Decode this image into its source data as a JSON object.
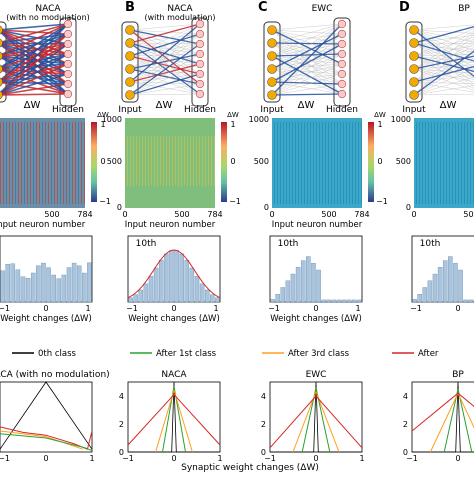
{
  "panels": [
    {
      "letter": "",
      "title": "NACA",
      "subtitle": "(with no modulation)",
      "hidden": "Hidden",
      "input": "",
      "dw": "ΔW"
    },
    {
      "letter": "B",
      "title": "NACA",
      "subtitle": "(with modulation)",
      "hidden": "Hidden",
      "input": "Input",
      "dw": "ΔW"
    },
    {
      "letter": "C",
      "title": "EWC",
      "subtitle": "",
      "hidden": "Hidden",
      "input": "Input",
      "dw": "ΔW"
    },
    {
      "letter": "D",
      "title": "BP",
      "subtitle": "",
      "hidden": "",
      "input": "Input",
      "dw": "ΔW"
    }
  ],
  "heatmaps": {
    "xlabel": "Input neuron number",
    "yticks": [
      "1000",
      "500",
      "0"
    ],
    "xticks": [
      "0",
      "500",
      "784"
    ],
    "cbar_ticks": [
      "1",
      "0",
      "−1"
    ],
    "cbar_label": "ΔW"
  },
  "histograms": {
    "tag": "10th",
    "xlabel": "Weight changes (ΔW)",
    "xticks": [
      "−1",
      "0",
      "1"
    ]
  },
  "legend": {
    "items": [
      {
        "label": "0th class",
        "color": "#000000"
      },
      {
        "label": "After 1st class",
        "color": "#2ca02c"
      },
      {
        "label": "After 3rd class",
        "color": "#ff9e1b"
      },
      {
        "label": "After",
        "color": "#d62728"
      }
    ]
  },
  "bottom": {
    "titles": [
      "ACA (with no modulation)",
      "NACA",
      "EWC",
      "BP"
    ],
    "xlabel": "Synaptic weight changes (ΔW)",
    "yticks": [
      "4",
      "2",
      "0"
    ],
    "xticks": [
      "−1",
      "0",
      "1"
    ]
  },
  "colors": {
    "red": "#c0262d",
    "blue": "#1f4e9c",
    "neuron_in": "#f2a900",
    "neuron_hidden": "#f7c9c9",
    "hist_bar": "#a9c4dd"
  },
  "chart_data": [
    {
      "type": "line",
      "title": "NACA",
      "xlabel": "Synaptic weight changes (ΔW)",
      "xlim": [
        -1,
        1
      ],
      "ylim": [
        0,
        5
      ],
      "series": [
        {
          "name": "0th class",
          "x": [
            -1,
            -0.05,
            0,
            0.05,
            1
          ],
          "y": [
            0,
            0,
            5,
            0,
            0
          ]
        },
        {
          "name": "After 1st class",
          "x": [
            -0.25,
            0,
            0.25
          ],
          "y": [
            0,
            4.7,
            0
          ]
        },
        {
          "name": "After 3rd class",
          "x": [
            -0.4,
            0,
            0.4
          ],
          "y": [
            0,
            4.4,
            0
          ]
        },
        {
          "name": "After",
          "x": [
            -1,
            0,
            1
          ],
          "y": [
            0.5,
            4.1,
            0.5
          ]
        }
      ]
    },
    {
      "type": "line",
      "title": "EWC",
      "xlabel": "Synaptic weight changes (ΔW)",
      "xlim": [
        -1,
        1
      ],
      "ylim": [
        0,
        5
      ],
      "series": [
        {
          "name": "0th class",
          "x": [
            -1,
            -0.05,
            0,
            0.05,
            1
          ],
          "y": [
            0,
            0,
            5,
            0,
            0
          ]
        },
        {
          "name": "After 1st class",
          "x": [
            -0.3,
            0,
            0.3
          ],
          "y": [
            0,
            4.6,
            0
          ]
        },
        {
          "name": "After 3rd class",
          "x": [
            -0.5,
            0,
            0.5
          ],
          "y": [
            0,
            4.3,
            0
          ]
        },
        {
          "name": "After",
          "x": [
            -1,
            0,
            1
          ],
          "y": [
            0.3,
            4,
            0.3
          ]
        }
      ]
    },
    {
      "type": "line",
      "title": "BP",
      "xlabel": "Synaptic weight changes (ΔW)",
      "xlim": [
        -1,
        1
      ],
      "ylim": [
        0,
        5
      ],
      "series": [
        {
          "name": "0th class",
          "x": [
            -1,
            -0.05,
            0,
            0.05,
            1
          ],
          "y": [
            0,
            0,
            5,
            0,
            0
          ]
        },
        {
          "name": "After 1st class",
          "x": [
            -0.3,
            0,
            0.3
          ],
          "y": [
            0,
            4.5,
            0
          ]
        },
        {
          "name": "After 3rd class",
          "x": [
            -0.6,
            0,
            0.6
          ],
          "y": [
            0,
            4.2,
            0
          ]
        },
        {
          "name": "After",
          "x": [
            -1,
            0,
            1
          ],
          "y": [
            1.5,
            4.2,
            1.5
          ]
        }
      ]
    }
  ]
}
